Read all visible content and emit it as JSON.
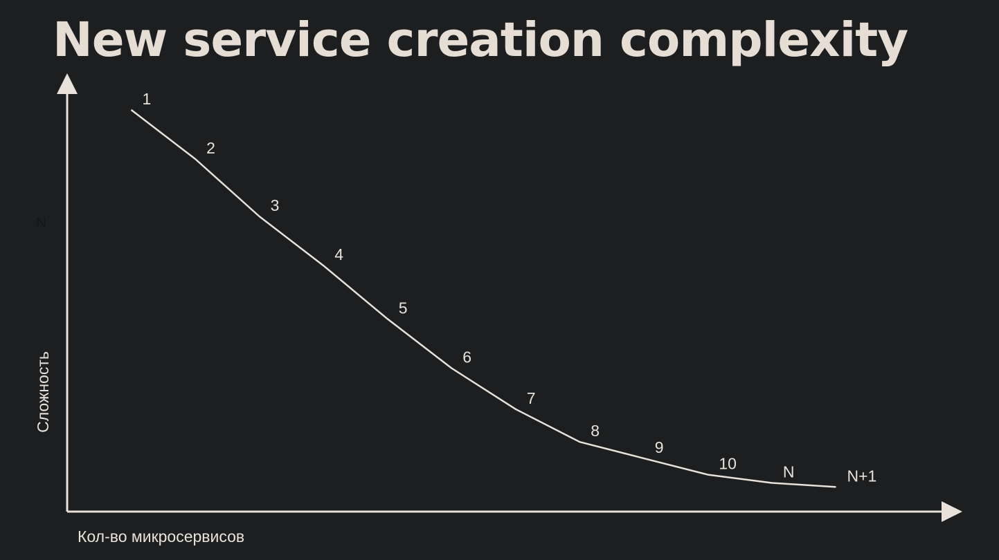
{
  "slide": {
    "title": "New service creation complexity"
  },
  "colors": {
    "background": "#1d1e20",
    "foreground": "#e8e2da",
    "title": "#e6ded4"
  },
  "chart_data": {
    "type": "line",
    "title": "New service creation complexity",
    "xlabel": "Кол-во микросервисов",
    "ylabel": "Сложность",
    "y_tick_label": "N",
    "grid": false,
    "legend": "none",
    "xlim": [
      0,
      13
    ],
    "ylim": [
      0,
      10
    ],
    "series": [
      {
        "labels": [
          "1",
          "2",
          "3",
          "4",
          "5",
          "6",
          "7",
          "8",
          "9",
          "10",
          "N",
          "N+1"
        ],
        "x": [
          1,
          2,
          3,
          4,
          5,
          6,
          7,
          8,
          9,
          10,
          11,
          12
        ],
        "y": [
          9.8,
          8.6,
          7.2,
          6.0,
          4.7,
          3.5,
          2.5,
          1.7,
          1.3,
          0.9,
          0.7,
          0.6
        ]
      }
    ]
  }
}
